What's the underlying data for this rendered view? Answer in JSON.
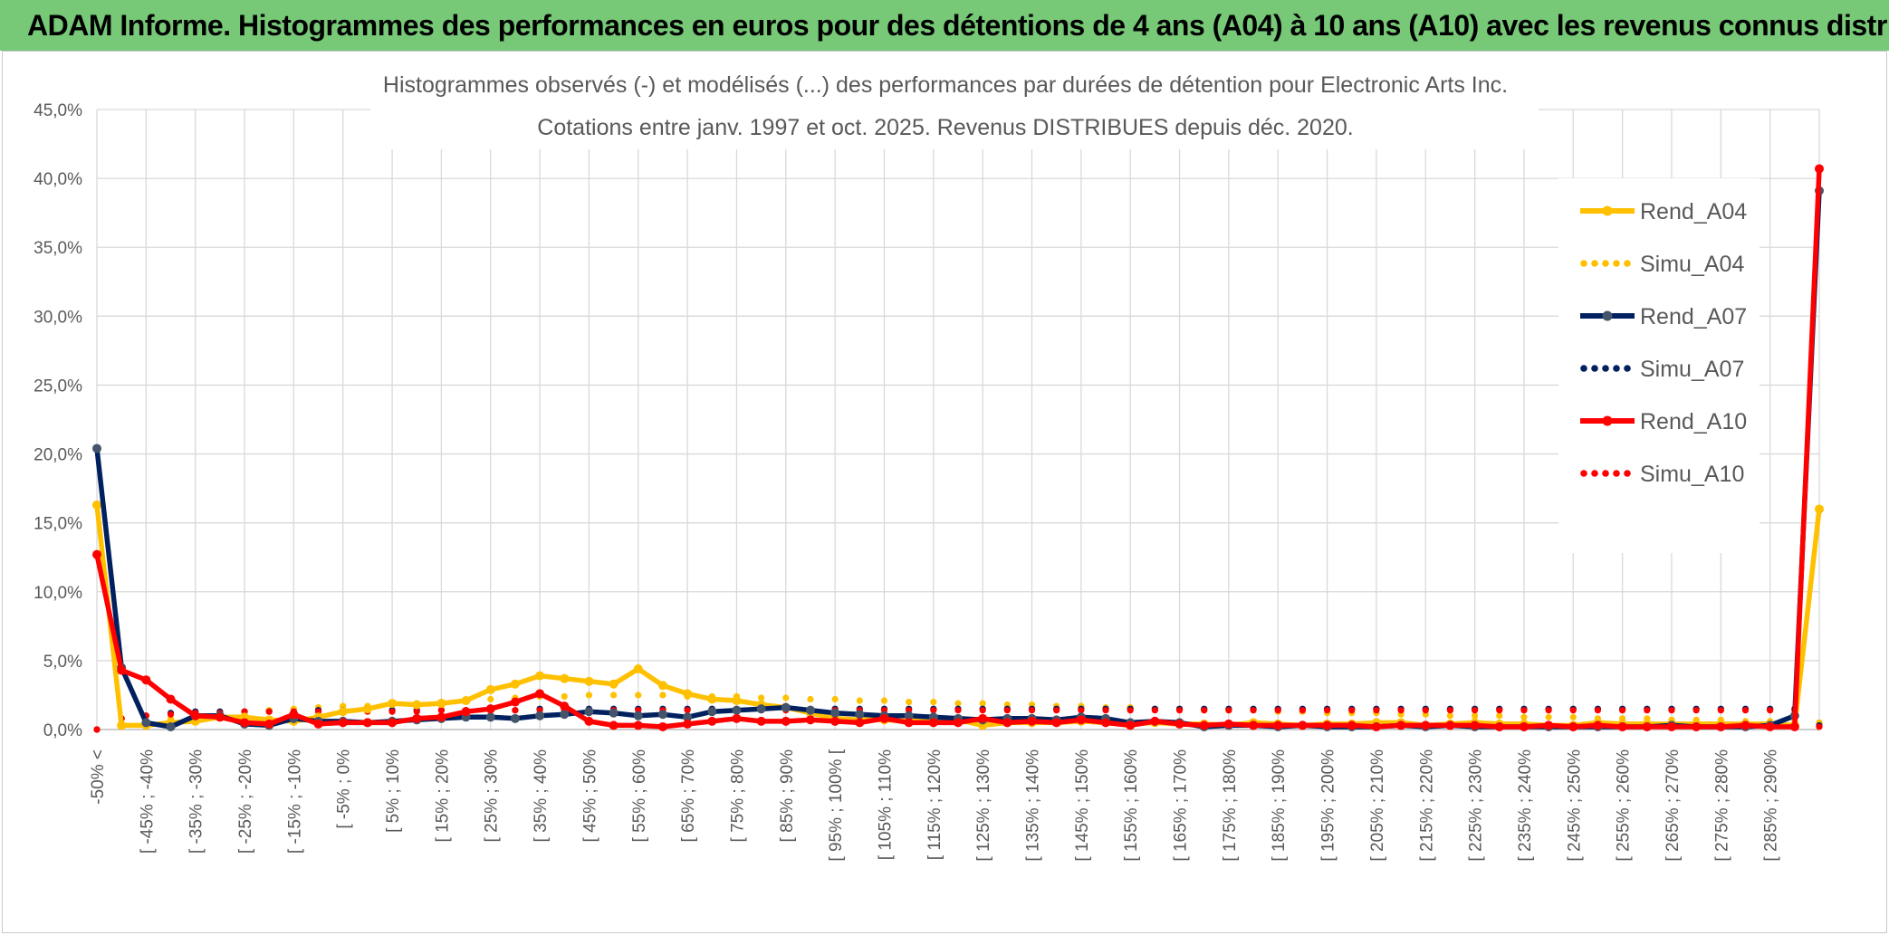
{
  "header": {
    "banner_title": "ADAM Informe. Histogrammes des performances en euros pour des détentions de 4 ans (A04) à 10 ans (A10) avec les revenus connus distribués"
  },
  "colors": {
    "banner_bg": "#77c977",
    "rend_a04": "#ffc000",
    "rend_a07": "#002060",
    "rend_a10": "#ff0000",
    "grid": "#d9d9d9",
    "text": "#595959"
  },
  "chart_data": {
    "type": "line",
    "title_line1": "Histogrammes observés (-) et modélisés (...) des performances par durées de détention pour Electronic Arts Inc.",
    "title_line2": "Cotations entre janv. 1997 et oct. 2025. Revenus DISTRIBUES depuis déc. 2020.",
    "ylim": [
      0,
      45
    ],
    "yticks": [
      "0,0%",
      "5,0%",
      "10,0%",
      "15,0%",
      "20,0%",
      "25,0%",
      "30,0%",
      "35,0%",
      "40,0%",
      "45,0%"
    ],
    "ytick_values": [
      0,
      5,
      10,
      15,
      20,
      25,
      30,
      35,
      40,
      45
    ],
    "x_tick_labels": [
      "-50% <",
      "[ -45% ; -40%",
      "[ -35% ; -30%",
      "[ -25% ; -20%",
      "[ -15% ; -10%",
      "[ -5% ; 0%",
      "[ 5% ; 10%",
      "[ 15% ; 20%",
      "[ 25% ; 30%",
      "[ 35% ; 40%",
      "[ 45% ; 50%",
      "[ 55% ; 60%",
      "[ 65% ; 70%",
      "[ 75% ; 80%",
      "[ 85% ; 90%",
      "[ 95% ; 100% [",
      "[ 105% ; 110%",
      "[ 115% ; 120%",
      "[ 125% ; 130%",
      "[ 135% ; 140%",
      "[ 145% ; 150%",
      "[ 155% ; 160%",
      "[ 165% ; 170%",
      "[ 175% ; 180%",
      "[ 185% ; 190%",
      "[ 195% ; 200%",
      "[ 205% ; 210%",
      "[ 215% ; 220%",
      "[ 225% ; 230%",
      "[ 235% ; 240%",
      "[ 245% ; 250%",
      "[ 255% ; 260%",
      "[ 265% ; 270%",
      "[ 275% ; 280%",
      "[ 285% ; 290%"
    ],
    "n_points": 71,
    "legend_position": "right",
    "series": [
      {
        "name": "Rend_A04",
        "style": "solid",
        "color": "#ffc000",
        "values": [
          16.3,
          0.3,
          0.3,
          0.5,
          0.6,
          0.9,
          0.9,
          0.7,
          0.6,
          0.9,
          1.3,
          1.5,
          1.9,
          1.8,
          1.9,
          2.1,
          2.9,
          3.3,
          3.9,
          3.7,
          3.5,
          3.3,
          4.4,
          3.2,
          2.6,
          2.2,
          2.1,
          1.8,
          1.6,
          1.2,
          0.8,
          0.7,
          0.7,
          0.6,
          0.8,
          0.7,
          0.3,
          0.5,
          0.5,
          0.5,
          0.6,
          0.5,
          0.4,
          0.5,
          0.4,
          0.4,
          0.3,
          0.5,
          0.4,
          0.3,
          0.4,
          0.4,
          0.5,
          0.5,
          0.3,
          0.4,
          0.5,
          0.4,
          0.4,
          0.3,
          0.3,
          0.5,
          0.4,
          0.4,
          0.4,
          0.4,
          0.4,
          0.4,
          0.4,
          0.3,
          16.0
        ]
      },
      {
        "name": "Simu_A04",
        "style": "dotted",
        "color": "#ffc000",
        "values": [
          0.0,
          0.4,
          0.6,
          0.8,
          1.0,
          1.2,
          1.3,
          1.4,
          1.5,
          1.6,
          1.7,
          1.7,
          1.8,
          1.9,
          2.0,
          2.1,
          2.2,
          2.3,
          2.4,
          2.4,
          2.5,
          2.5,
          2.5,
          2.5,
          2.4,
          2.4,
          2.4,
          2.3,
          2.3,
          2.2,
          2.2,
          2.1,
          2.1,
          2.0,
          2.0,
          1.9,
          1.9,
          1.8,
          1.8,
          1.7,
          1.7,
          1.6,
          1.6,
          1.5,
          1.5,
          1.4,
          1.4,
          1.4,
          1.3,
          1.3,
          1.2,
          1.2,
          1.2,
          1.1,
          1.1,
          1.0,
          1.0,
          1.0,
          0.9,
          0.9,
          0.9,
          0.8,
          0.8,
          0.8,
          0.7,
          0.7,
          0.7,
          0.6,
          0.6,
          0.6,
          0.5
        ]
      },
      {
        "name": "Rend_A07",
        "style": "solid",
        "color": "#002060",
        "values": [
          20.4,
          4.5,
          0.5,
          0.2,
          1.0,
          1.0,
          0.4,
          0.3,
          0.8,
          0.6,
          0.6,
          0.5,
          0.6,
          0.7,
          0.8,
          0.9,
          0.9,
          0.8,
          1.0,
          1.1,
          1.3,
          1.2,
          1.0,
          1.1,
          0.9,
          1.3,
          1.4,
          1.5,
          1.6,
          1.4,
          1.2,
          1.1,
          1.0,
          1.0,
          0.9,
          0.8,
          0.7,
          0.8,
          0.8,
          0.7,
          0.9,
          0.8,
          0.5,
          0.6,
          0.5,
          0.2,
          0.3,
          0.3,
          0.2,
          0.3,
          0.2,
          0.2,
          0.2,
          0.3,
          0.2,
          0.3,
          0.2,
          0.2,
          0.2,
          0.2,
          0.2,
          0.2,
          0.2,
          0.2,
          0.3,
          0.2,
          0.2,
          0.2,
          0.3,
          1.0,
          39.1
        ]
      },
      {
        "name": "Simu_A07",
        "style": "dotted",
        "color": "#002060",
        "values": [
          0.0,
          0.8,
          1.0,
          1.2,
          1.3,
          1.3,
          1.3,
          1.3,
          1.3,
          1.4,
          1.4,
          1.4,
          1.4,
          1.4,
          1.4,
          1.4,
          1.4,
          1.4,
          1.5,
          1.5,
          1.5,
          1.5,
          1.5,
          1.5,
          1.5,
          1.5,
          1.5,
          1.5,
          1.5,
          1.5,
          1.5,
          1.5,
          1.5,
          1.5,
          1.5,
          1.5,
          1.5,
          1.5,
          1.5,
          1.5,
          1.5,
          1.5,
          1.5,
          1.5,
          1.5,
          1.5,
          1.5,
          1.5,
          1.5,
          1.5,
          1.5,
          1.5,
          1.5,
          1.5,
          1.5,
          1.5,
          1.5,
          1.5,
          1.5,
          1.5,
          1.5,
          1.5,
          1.5,
          1.5,
          1.5,
          1.5,
          1.5,
          1.5,
          1.5,
          1.5,
          0.3
        ]
      },
      {
        "name": "Rend_A10",
        "style": "solid",
        "color": "#ff0000",
        "values": [
          12.7,
          4.3,
          3.6,
          2.2,
          1.0,
          0.9,
          0.5,
          0.4,
          1.1,
          0.4,
          0.5,
          0.5,
          0.5,
          0.8,
          0.9,
          1.3,
          1.5,
          2.0,
          2.6,
          1.7,
          0.6,
          0.3,
          0.3,
          0.2,
          0.4,
          0.6,
          0.8,
          0.6,
          0.6,
          0.7,
          0.6,
          0.5,
          0.8,
          0.5,
          0.5,
          0.5,
          0.8,
          0.5,
          0.6,
          0.5,
          0.7,
          0.5,
          0.3,
          0.6,
          0.4,
          0.3,
          0.4,
          0.3,
          0.3,
          0.3,
          0.3,
          0.3,
          0.2,
          0.3,
          0.3,
          0.3,
          0.3,
          0.2,
          0.2,
          0.3,
          0.2,
          0.3,
          0.2,
          0.2,
          0.2,
          0.2,
          0.2,
          0.3,
          0.2,
          0.2,
          40.7
        ]
      },
      {
        "name": "Simu_A10",
        "style": "dotted",
        "color": "#ff0000",
        "values": [
          0.0,
          0.8,
          1.0,
          1.1,
          1.2,
          1.2,
          1.3,
          1.3,
          1.3,
          1.3,
          1.3,
          1.3,
          1.3,
          1.3,
          1.4,
          1.4,
          1.4,
          1.4,
          1.4,
          1.4,
          1.4,
          1.4,
          1.4,
          1.4,
          1.4,
          1.4,
          1.4,
          1.4,
          1.4,
          1.4,
          1.4,
          1.4,
          1.4,
          1.4,
          1.4,
          1.4,
          1.4,
          1.4,
          1.4,
          1.4,
          1.4,
          1.4,
          1.4,
          1.4,
          1.4,
          1.4,
          1.4,
          1.4,
          1.4,
          1.4,
          1.4,
          1.4,
          1.4,
          1.4,
          1.4,
          1.4,
          1.4,
          1.4,
          1.4,
          1.4,
          1.4,
          1.4,
          1.4,
          1.4,
          1.4,
          1.4,
          1.4,
          1.4,
          1.4,
          1.4,
          0.2
        ]
      }
    ]
  }
}
